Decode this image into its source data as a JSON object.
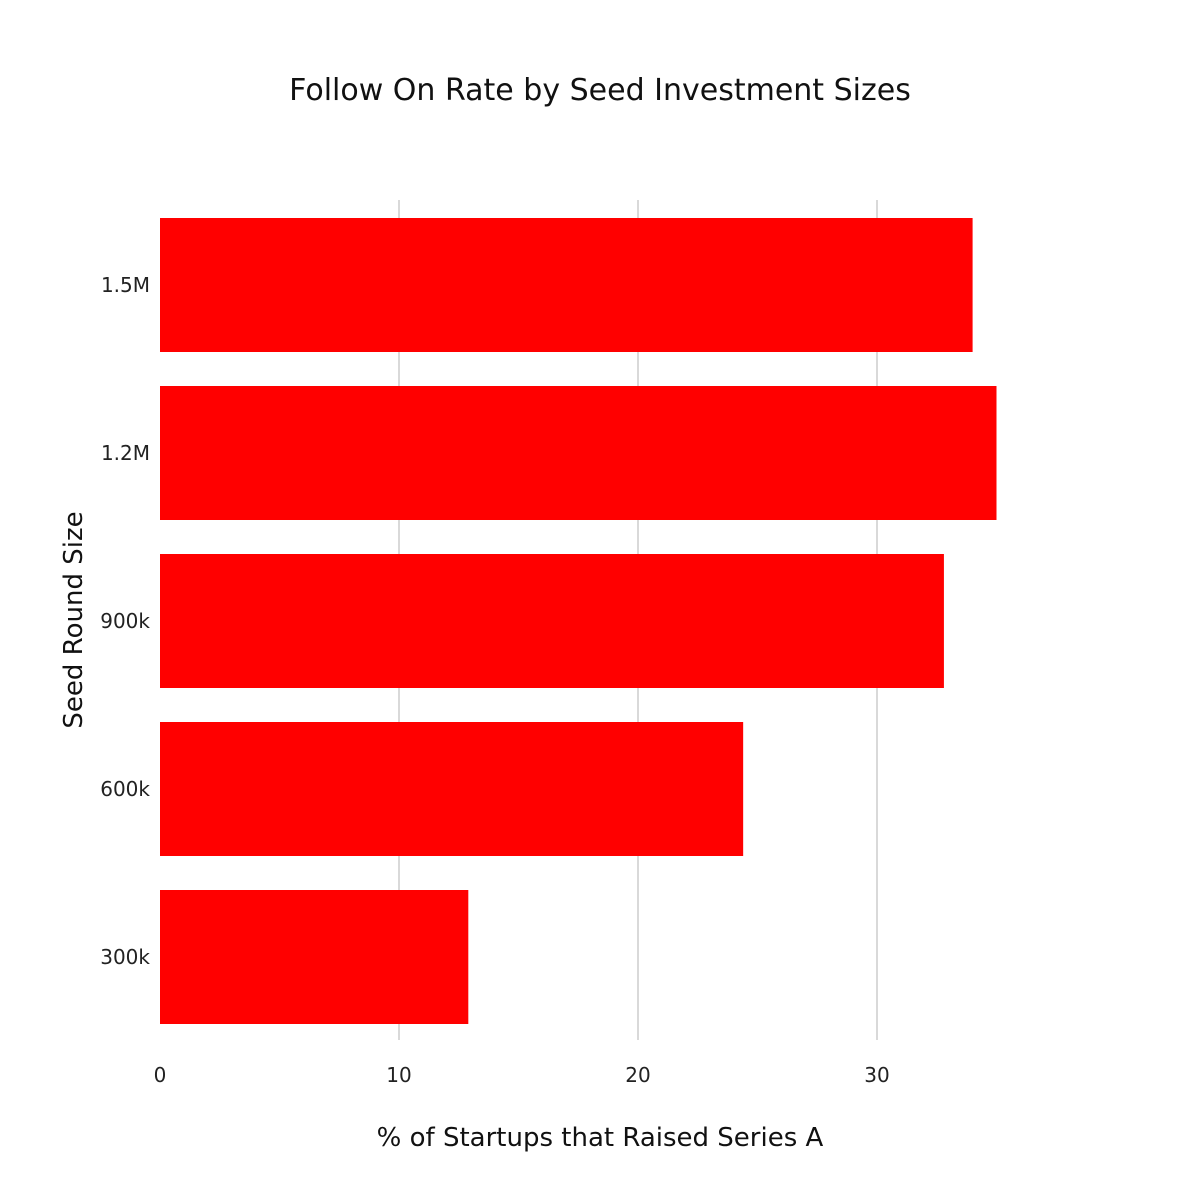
{
  "chart_data": {
    "type": "bar",
    "orientation": "horizontal",
    "title": "Follow On Rate by Seed Investment Sizes",
    "xlabel": "% of Startups that Raised Series A",
    "ylabel": "Seed Round Size",
    "categories": [
      "300k",
      "600k",
      "900k",
      "1.2M",
      "1.5M"
    ],
    "values": [
      12.9,
      24.4,
      32.8,
      35.0,
      34.0
    ],
    "xlim": [
      0,
      35
    ],
    "xticks": [
      0,
      10,
      20,
      30
    ],
    "grid": "vertical",
    "bar_color": "#ff0000",
    "legend": "none"
  }
}
